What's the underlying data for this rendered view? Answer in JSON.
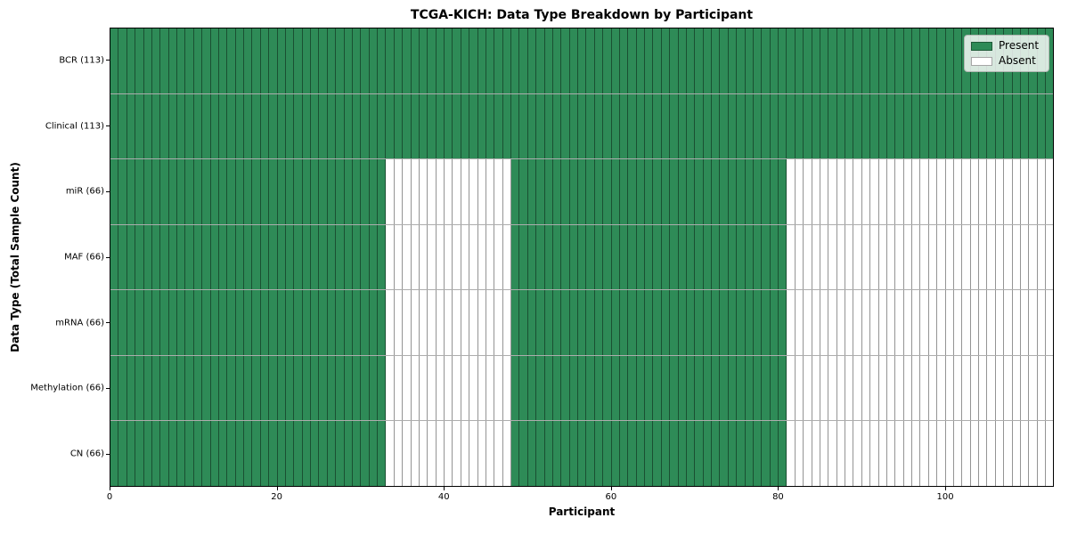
{
  "chart_data": {
    "type": "heatmap",
    "title": "TCGA-KICH: Data Type Breakdown by Participant",
    "xlabel": "Participant",
    "ylabel": "Data Type (Total Sample Count)",
    "x_ticks": [
      0,
      20,
      40,
      60,
      80,
      100
    ],
    "x_range": [
      0,
      113
    ],
    "n_participants": 113,
    "grid": true,
    "legend_position": "upper right",
    "rows": [
      {
        "label": "BCR (113)",
        "data_type": "BCR",
        "total_samples": 113,
        "present_ranges": [
          [
            0,
            113
          ]
        ]
      },
      {
        "label": "Clinical (113)",
        "data_type": "Clinical",
        "total_samples": 113,
        "present_ranges": [
          [
            0,
            113
          ]
        ]
      },
      {
        "label": "miR (66)",
        "data_type": "miR",
        "total_samples": 66,
        "present_ranges": [
          [
            0,
            33
          ],
          [
            48,
            81
          ]
        ]
      },
      {
        "label": "MAF (66)",
        "data_type": "MAF",
        "total_samples": 66,
        "present_ranges": [
          [
            0,
            33
          ],
          [
            48,
            81
          ]
        ]
      },
      {
        "label": "mRNA (66)",
        "data_type": "mRNA",
        "total_samples": 66,
        "present_ranges": [
          [
            0,
            33
          ],
          [
            48,
            81
          ]
        ]
      },
      {
        "label": "Methylation (66)",
        "data_type": "Methylation",
        "total_samples": 66,
        "present_ranges": [
          [
            0,
            33
          ],
          [
            48,
            81
          ]
        ]
      },
      {
        "label": "CN (66)",
        "data_type": "CN",
        "total_samples": 66,
        "present_ranges": [
          [
            0,
            33
          ],
          [
            48,
            81
          ]
        ]
      }
    ],
    "legend": [
      {
        "label": "Present",
        "color": "#2e8b57"
      },
      {
        "label": "Absent",
        "color": "#ffffff"
      }
    ],
    "colors": {
      "present": "#2e8b57",
      "absent": "#ffffff"
    }
  }
}
